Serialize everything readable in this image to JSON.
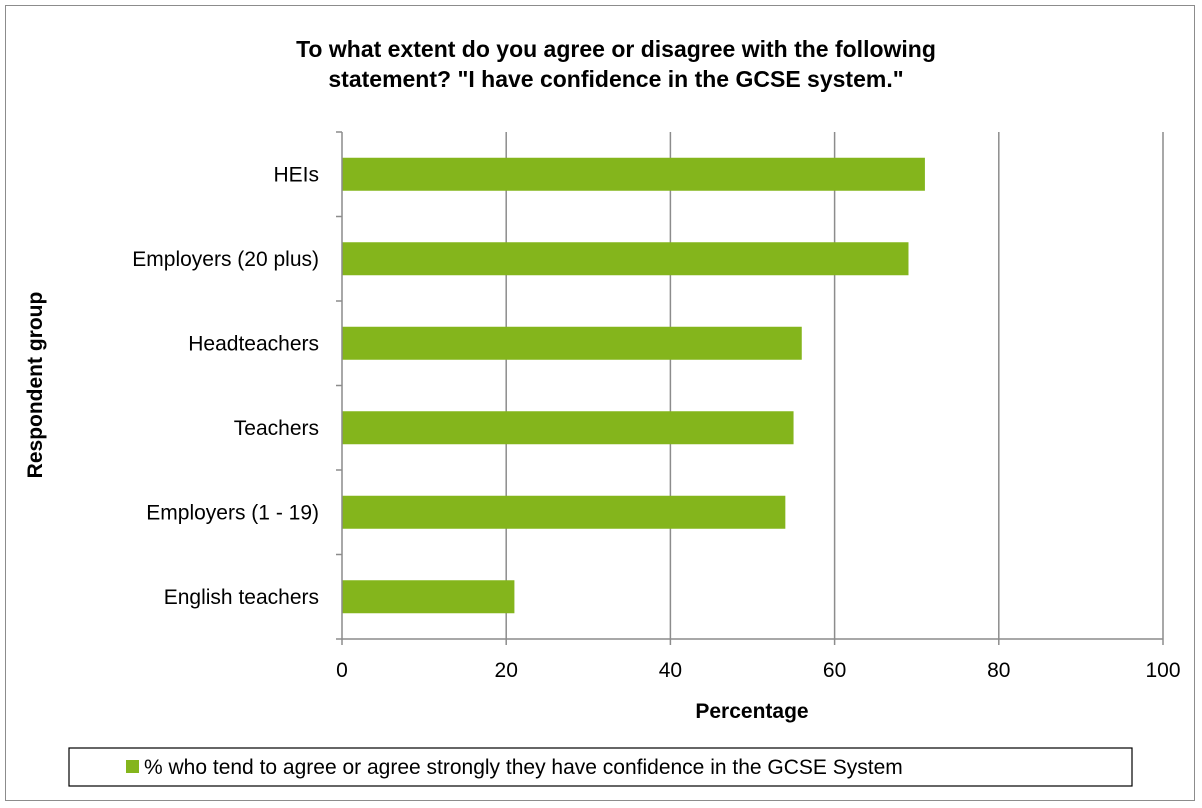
{
  "chart_data": {
    "type": "bar",
    "orientation": "horizontal",
    "title_lines": [
      "To what extent do you agree or disagree with the following",
      "statement? \"I have confidence in the GCSE system.\""
    ],
    "xlabel": "Percentage",
    "ylabel": "Respondent group",
    "xlim": [
      0,
      100
    ],
    "x_ticks": [
      "0",
      "20",
      "40",
      "60",
      "80",
      "100"
    ],
    "grid": "vertical",
    "categories": [
      "HEIs",
      "Employers (20 plus)",
      "Headteachers",
      "Teachers",
      "Employers (1 - 19)",
      "English teachers"
    ],
    "series": [
      {
        "name": "% who tend to agree or agree strongly they have confidence in the GCSE System",
        "values": [
          71,
          69,
          56,
          55,
          54,
          21
        ],
        "color": "#84b51c"
      }
    ],
    "legend_position": "bottom"
  }
}
